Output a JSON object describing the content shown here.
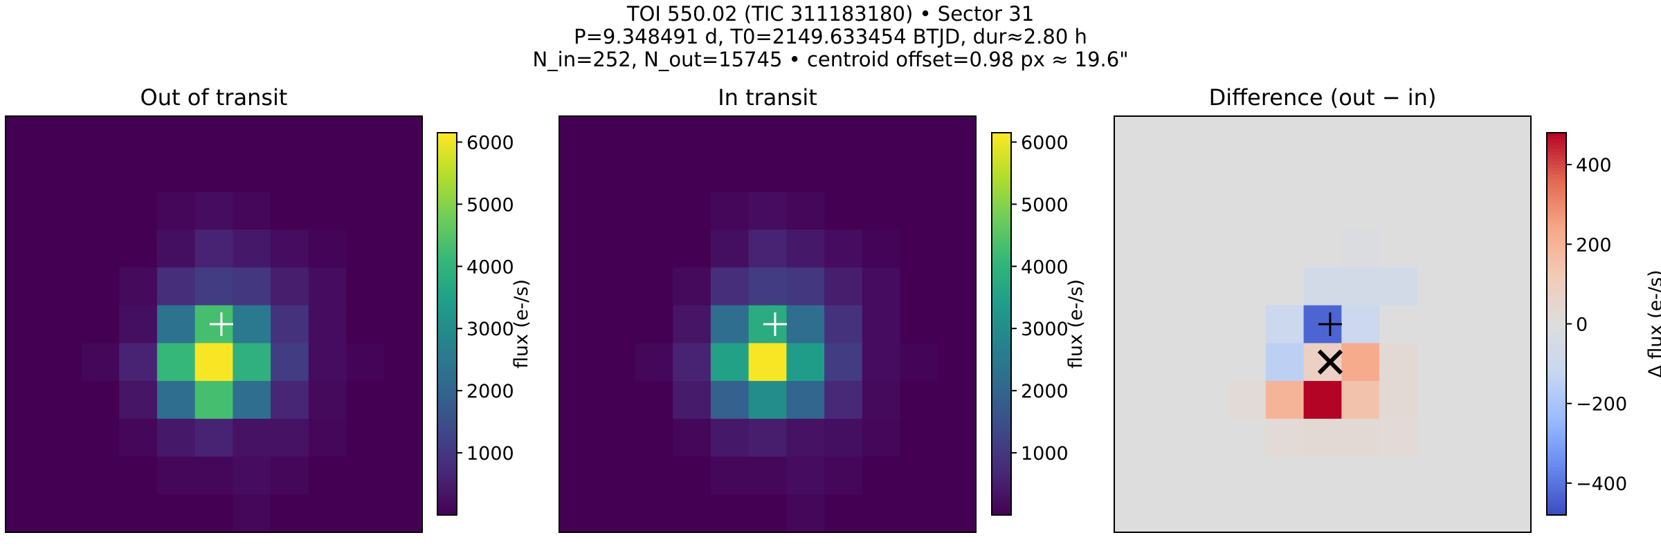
{
  "suptitle": [
    "TOI 550.02 (TIC 311183180)  •  Sector 31",
    "P=9.348491 d, T0=2149.633454 BTJD, dur≈2.80 h",
    "N_in=252, N_out=15745  •  centroid offset=0.98 px ≈ 19.6\""
  ],
  "colors": {
    "viridis": [
      "#440154",
      "#482878",
      "#3e4989",
      "#31688e",
      "#26828e",
      "#1f9e89",
      "#35b779",
      "#6ece58",
      "#b5de2b",
      "#fde725"
    ],
    "coolwarm": [
      "#3b4cc0",
      "#6788ee",
      "#9abbff",
      "#c9d7f0",
      "#dddddd",
      "#f2cbb7",
      "#f7a889",
      "#e26952",
      "#b40426"
    ],
    "difference_background": "#dddddd",
    "marker_flux": "#ffffff",
    "marker_diff": "#000000"
  },
  "chart_data": [
    {
      "type": "heatmap",
      "title": "Out of transit",
      "colormap": "viridis",
      "grid_size": [
        11,
        11
      ],
      "cells": [
        [
          0,
          0,
          0,
          0,
          0,
          0,
          0,
          0,
          0,
          0,
          0
        ],
        [
          0,
          0,
          0,
          0,
          0,
          0,
          0,
          0,
          0,
          0,
          0
        ],
        [
          0,
          0,
          0,
          0,
          100,
          200,
          100,
          0,
          0,
          0,
          0
        ],
        [
          0,
          0,
          0,
          0,
          250,
          600,
          400,
          200,
          50,
          0,
          0
        ],
        [
          0,
          0,
          0,
          150,
          800,
          1100,
          1000,
          500,
          200,
          0,
          0
        ],
        [
          0,
          0,
          0,
          250,
          2300,
          4300,
          2500,
          900,
          200,
          0,
          0
        ],
        [
          0,
          0,
          100,
          600,
          4100,
          6100,
          3900,
          1100,
          200,
          50,
          0
        ],
        [
          0,
          0,
          0,
          350,
          2200,
          4300,
          2200,
          650,
          150,
          0,
          0
        ],
        [
          0,
          0,
          0,
          100,
          400,
          600,
          300,
          300,
          100,
          0,
          0
        ],
        [
          0,
          0,
          0,
          0,
          100,
          100,
          200,
          100,
          0,
          0,
          0
        ],
        [
          0,
          0,
          0,
          0,
          0,
          0,
          100,
          0,
          0,
          0,
          0
        ]
      ],
      "marker": {
        "type": "plus",
        "row": 5.5,
        "col": 5.7
      },
      "colorbar": {
        "label": "flux (e-/s)",
        "range": [
          0,
          6150
        ],
        "ticks": [
          1000,
          2000,
          3000,
          4000,
          5000,
          6000
        ]
      }
    },
    {
      "type": "heatmap",
      "title": "In transit",
      "colormap": "viridis",
      "grid_size": [
        11,
        11
      ],
      "cells": [
        [
          0,
          0,
          0,
          0,
          0,
          0,
          0,
          0,
          0,
          0,
          0
        ],
        [
          0,
          0,
          0,
          0,
          0,
          0,
          0,
          0,
          0,
          0,
          0
        ],
        [
          0,
          0,
          0,
          0,
          100,
          200,
          100,
          0,
          0,
          0,
          0
        ],
        [
          0,
          0,
          0,
          0,
          250,
          600,
          400,
          200,
          50,
          0,
          0
        ],
        [
          0,
          0,
          0,
          150,
          800,
          1100,
          1000,
          500,
          200,
          0,
          0
        ],
        [
          0,
          0,
          0,
          350,
          2200,
          3800,
          2200,
          900,
          200,
          0,
          0
        ],
        [
          0,
          0,
          100,
          600,
          3500,
          6100,
          3400,
          1100,
          200,
          50,
          0
        ],
        [
          0,
          0,
          0,
          450,
          1900,
          3000,
          2000,
          700,
          150,
          0,
          0
        ],
        [
          0,
          0,
          0,
          100,
          400,
          500,
          300,
          250,
          100,
          0,
          0
        ],
        [
          0,
          0,
          0,
          0,
          100,
          100,
          200,
          100,
          0,
          0,
          0
        ],
        [
          0,
          0,
          0,
          0,
          0,
          0,
          100,
          0,
          0,
          0,
          0
        ]
      ],
      "marker": {
        "type": "plus",
        "row": 5.5,
        "col": 5.7
      },
      "colorbar": {
        "label": "flux (e-/s)",
        "range": [
          0,
          6150
        ],
        "ticks": [
          1000,
          2000,
          3000,
          4000,
          5000,
          6000
        ]
      }
    },
    {
      "type": "heatmap",
      "title": "Difference (out − in)",
      "colormap": "coolwarm",
      "grid_size": [
        11,
        11
      ],
      "cells": [
        [
          0,
          0,
          0,
          0,
          0,
          0,
          0,
          0,
          0,
          0,
          0
        ],
        [
          0,
          0,
          0,
          0,
          0,
          0,
          0,
          0,
          0,
          0,
          0
        ],
        [
          0,
          0,
          0,
          0,
          0,
          0,
          0,
          0,
          0,
          0,
          0
        ],
        [
          0,
          0,
          0,
          0,
          0,
          0,
          -20,
          0,
          0,
          0,
          0
        ],
        [
          0,
          0,
          0,
          0,
          0,
          -60,
          -60,
          -60,
          0,
          0,
          0
        ],
        [
          0,
          0,
          0,
          0,
          -110,
          -430,
          -110,
          0,
          0,
          0,
          0
        ],
        [
          0,
          0,
          0,
          0,
          -150,
          80,
          230,
          30,
          0,
          0,
          0
        ],
        [
          0,
          0,
          0,
          20,
          200,
          480,
          150,
          30,
          0,
          0,
          0
        ],
        [
          0,
          0,
          0,
          0,
          20,
          30,
          30,
          20,
          0,
          0,
          0
        ],
        [
          0,
          0,
          0,
          0,
          0,
          0,
          0,
          0,
          0,
          0,
          0
        ],
        [
          0,
          0,
          0,
          0,
          0,
          0,
          0,
          0,
          0,
          0,
          0
        ]
      ],
      "markers": [
        {
          "type": "plus",
          "row": 5.5,
          "col": 5.7
        },
        {
          "type": "x",
          "row": 6.5,
          "col": 5.7
        }
      ],
      "colorbar": {
        "label": "Δ flux (e-/s)",
        "range": [
          -480,
          480
        ],
        "ticks": [
          -400,
          -200,
          0,
          200,
          400
        ],
        "tick_labels": [
          "−400",
          "−200",
          "0",
          "200",
          "400"
        ]
      }
    }
  ]
}
